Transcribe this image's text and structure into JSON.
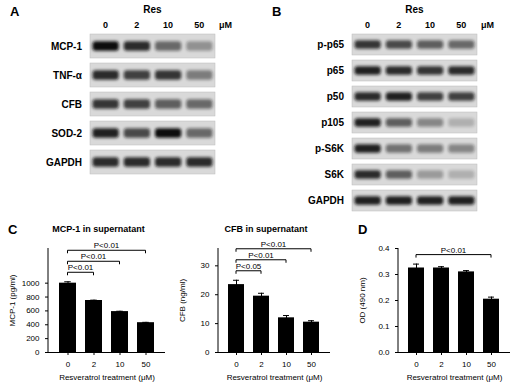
{
  "chart_data": [
    {
      "type": "bar",
      "panel": "C",
      "title": "MCP-1 in supernatant",
      "x_label": "Resveratrol treatment (μM)",
      "y_label": "MCP-1 (pg/ml)",
      "categories": [
        "0",
        "2",
        "10",
        "50"
      ],
      "values": [
        1000,
        750,
        590,
        430
      ],
      "errors": [
        20,
        5,
        5,
        5
      ],
      "color": "#000000",
      "ylim": [
        0,
        1500
      ],
      "yticks": [
        0,
        200,
        400,
        600,
        800,
        1000
      ],
      "annotations": [
        {
          "text": "P<0.01",
          "from": "0",
          "to": "2"
        },
        {
          "text": "P<0.01",
          "from": "0",
          "to": "10"
        },
        {
          "text": "P<0.01",
          "from": "0",
          "to": "50"
        }
      ]
    },
    {
      "type": "bar",
      "panel": "C",
      "title": "CFB in supernatant",
      "x_label": "Resveratrol treatment (μM)",
      "y_label": "CFB (ng/ml)",
      "categories": [
        "0",
        "2",
        "10",
        "50"
      ],
      "values": [
        23.5,
        19.5,
        12,
        10.5
      ],
      "errors": [
        1.5,
        1,
        0.8,
        0.5
      ],
      "color": "#000000",
      "ylim": [
        0,
        36
      ],
      "yticks": [
        0,
        10,
        20,
        30
      ],
      "annotations": [
        {
          "text": "P<0.05",
          "from": "0",
          "to": "2"
        },
        {
          "text": "P<0.01",
          "from": "0",
          "to": "10"
        },
        {
          "text": "P<0.01",
          "from": "0",
          "to": "50"
        }
      ]
    },
    {
      "type": "bar",
      "panel": "D",
      "x_label": "Resveratrol treatment (μM)",
      "y_label": "OD (490 nm)",
      "categories": [
        "0",
        "2",
        "10",
        "50"
      ],
      "values": [
        0.325,
        0.325,
        0.31,
        0.205
      ],
      "errors": [
        0.015,
        0.005,
        0.005,
        0.008
      ],
      "color": "#000000",
      "ylim": [
        0,
        0.4
      ],
      "yticks": [
        {
          "value": 0,
          "label": "0.0"
        },
        {
          "value": 0.1,
          "label": "0.1"
        },
        {
          "value": 0.2,
          "label": "0.2"
        },
        {
          "value": 0.3,
          "label": "0.3"
        },
        {
          "value": 0.4,
          "label": "0.4"
        }
      ],
      "annotations": [
        {
          "text": "P<0.01",
          "from": "0",
          "to": "50"
        }
      ]
    }
  ],
  "blots": [
    {
      "panel": "A",
      "treatment": "Res",
      "doses": [
        "0",
        "2",
        "10",
        "50"
      ],
      "unit": "μM",
      "rows": [
        {
          "label": "MCP-1",
          "bands": [
            1,
            0.85,
            0.55,
            0.35
          ]
        },
        {
          "label": "TNF-α",
          "bands": [
            0.85,
            0.75,
            0.8,
            0.45
          ]
        },
        {
          "label": "CFB",
          "bands": [
            0.8,
            0.75,
            0.6,
            0.55
          ]
        },
        {
          "label": "SOD-2",
          "bands": [
            0.9,
            0.7,
            1,
            0.55
          ]
        },
        {
          "label": "GAPDH",
          "bands": [
            0.85,
            0.85,
            0.85,
            0.85
          ]
        }
      ]
    },
    {
      "panel": "B",
      "treatment": "Res",
      "doses": [
        "0",
        "2",
        "10",
        "50"
      ],
      "unit": "μM",
      "rows": [
        {
          "label": "p-p65",
          "bands": [
            0.8,
            0.7,
            0.6,
            0.55
          ]
        },
        {
          "label": "p65",
          "bands": [
            0.9,
            0.85,
            0.8,
            0.85
          ]
        },
        {
          "label": "p50",
          "bands": [
            0.85,
            0.9,
            0.75,
            0.75
          ]
        },
        {
          "label": "p105",
          "bands": [
            0.9,
            0.6,
            0.4,
            0.2
          ]
        },
        {
          "label": "p-S6K",
          "bands": [
            0.9,
            0.5,
            0.45,
            0.4
          ]
        },
        {
          "label": "S6K",
          "bands": [
            0.85,
            0.6,
            0.3,
            0.2
          ]
        },
        {
          "label": "GAPDH",
          "bands": [
            0.9,
            0.9,
            0.9,
            0.9
          ]
        }
      ]
    }
  ]
}
